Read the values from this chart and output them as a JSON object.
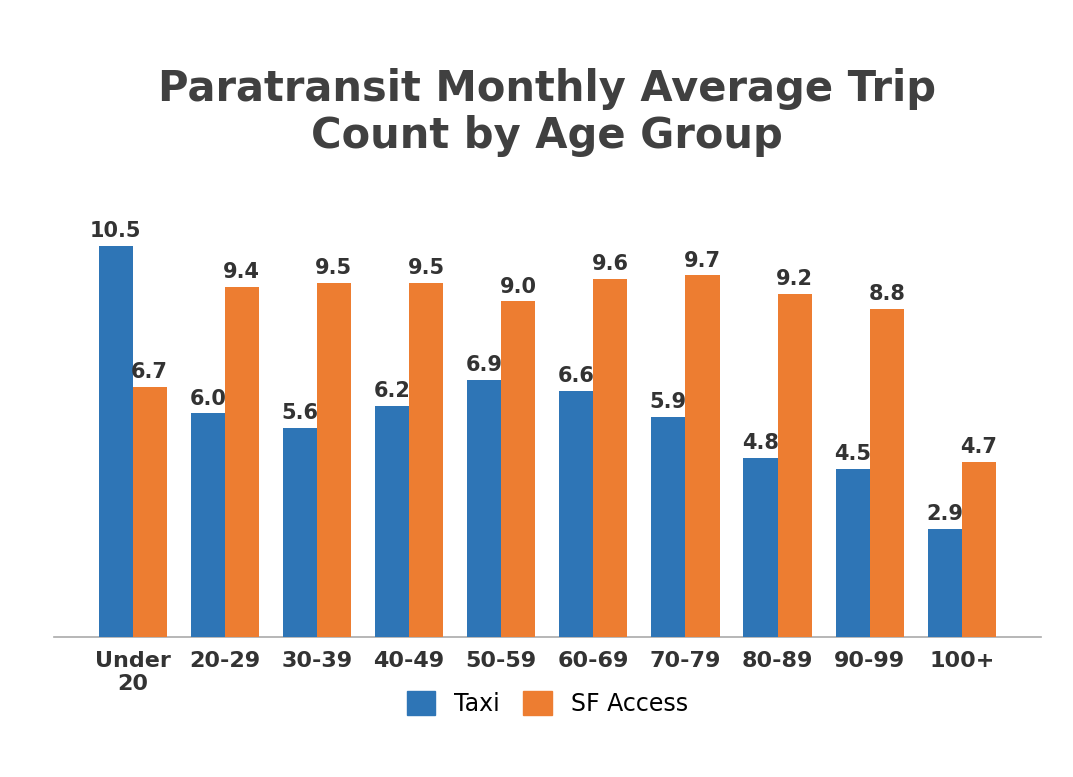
{
  "title_line1": "Paratransit Monthly Average Trip",
  "title_line2": "Count by Age Group",
  "categories": [
    "Under\n20",
    "20-29",
    "30-39",
    "40-49",
    "50-59",
    "60-69",
    "70-79",
    "80-89",
    "90-99",
    "100+"
  ],
  "taxi_values": [
    10.5,
    6.0,
    5.6,
    6.2,
    6.9,
    6.6,
    5.9,
    4.8,
    4.5,
    2.9
  ],
  "sfaccess_values": [
    6.7,
    9.4,
    9.5,
    9.5,
    9.0,
    9.6,
    9.7,
    9.2,
    8.8,
    4.7
  ],
  "taxi_color": "#2E75B6",
  "sfaccess_color": "#ED7D31",
  "background_color": "#FFFFFF",
  "title_fontsize": 30,
  "title_color": "#404040",
  "tick_fontsize": 16,
  "legend_fontsize": 17,
  "bar_label_fontsize": 15,
  "ylim": [
    0,
    12.5
  ],
  "legend_labels": [
    "Taxi",
    "SF Access"
  ],
  "bar_width": 0.37
}
